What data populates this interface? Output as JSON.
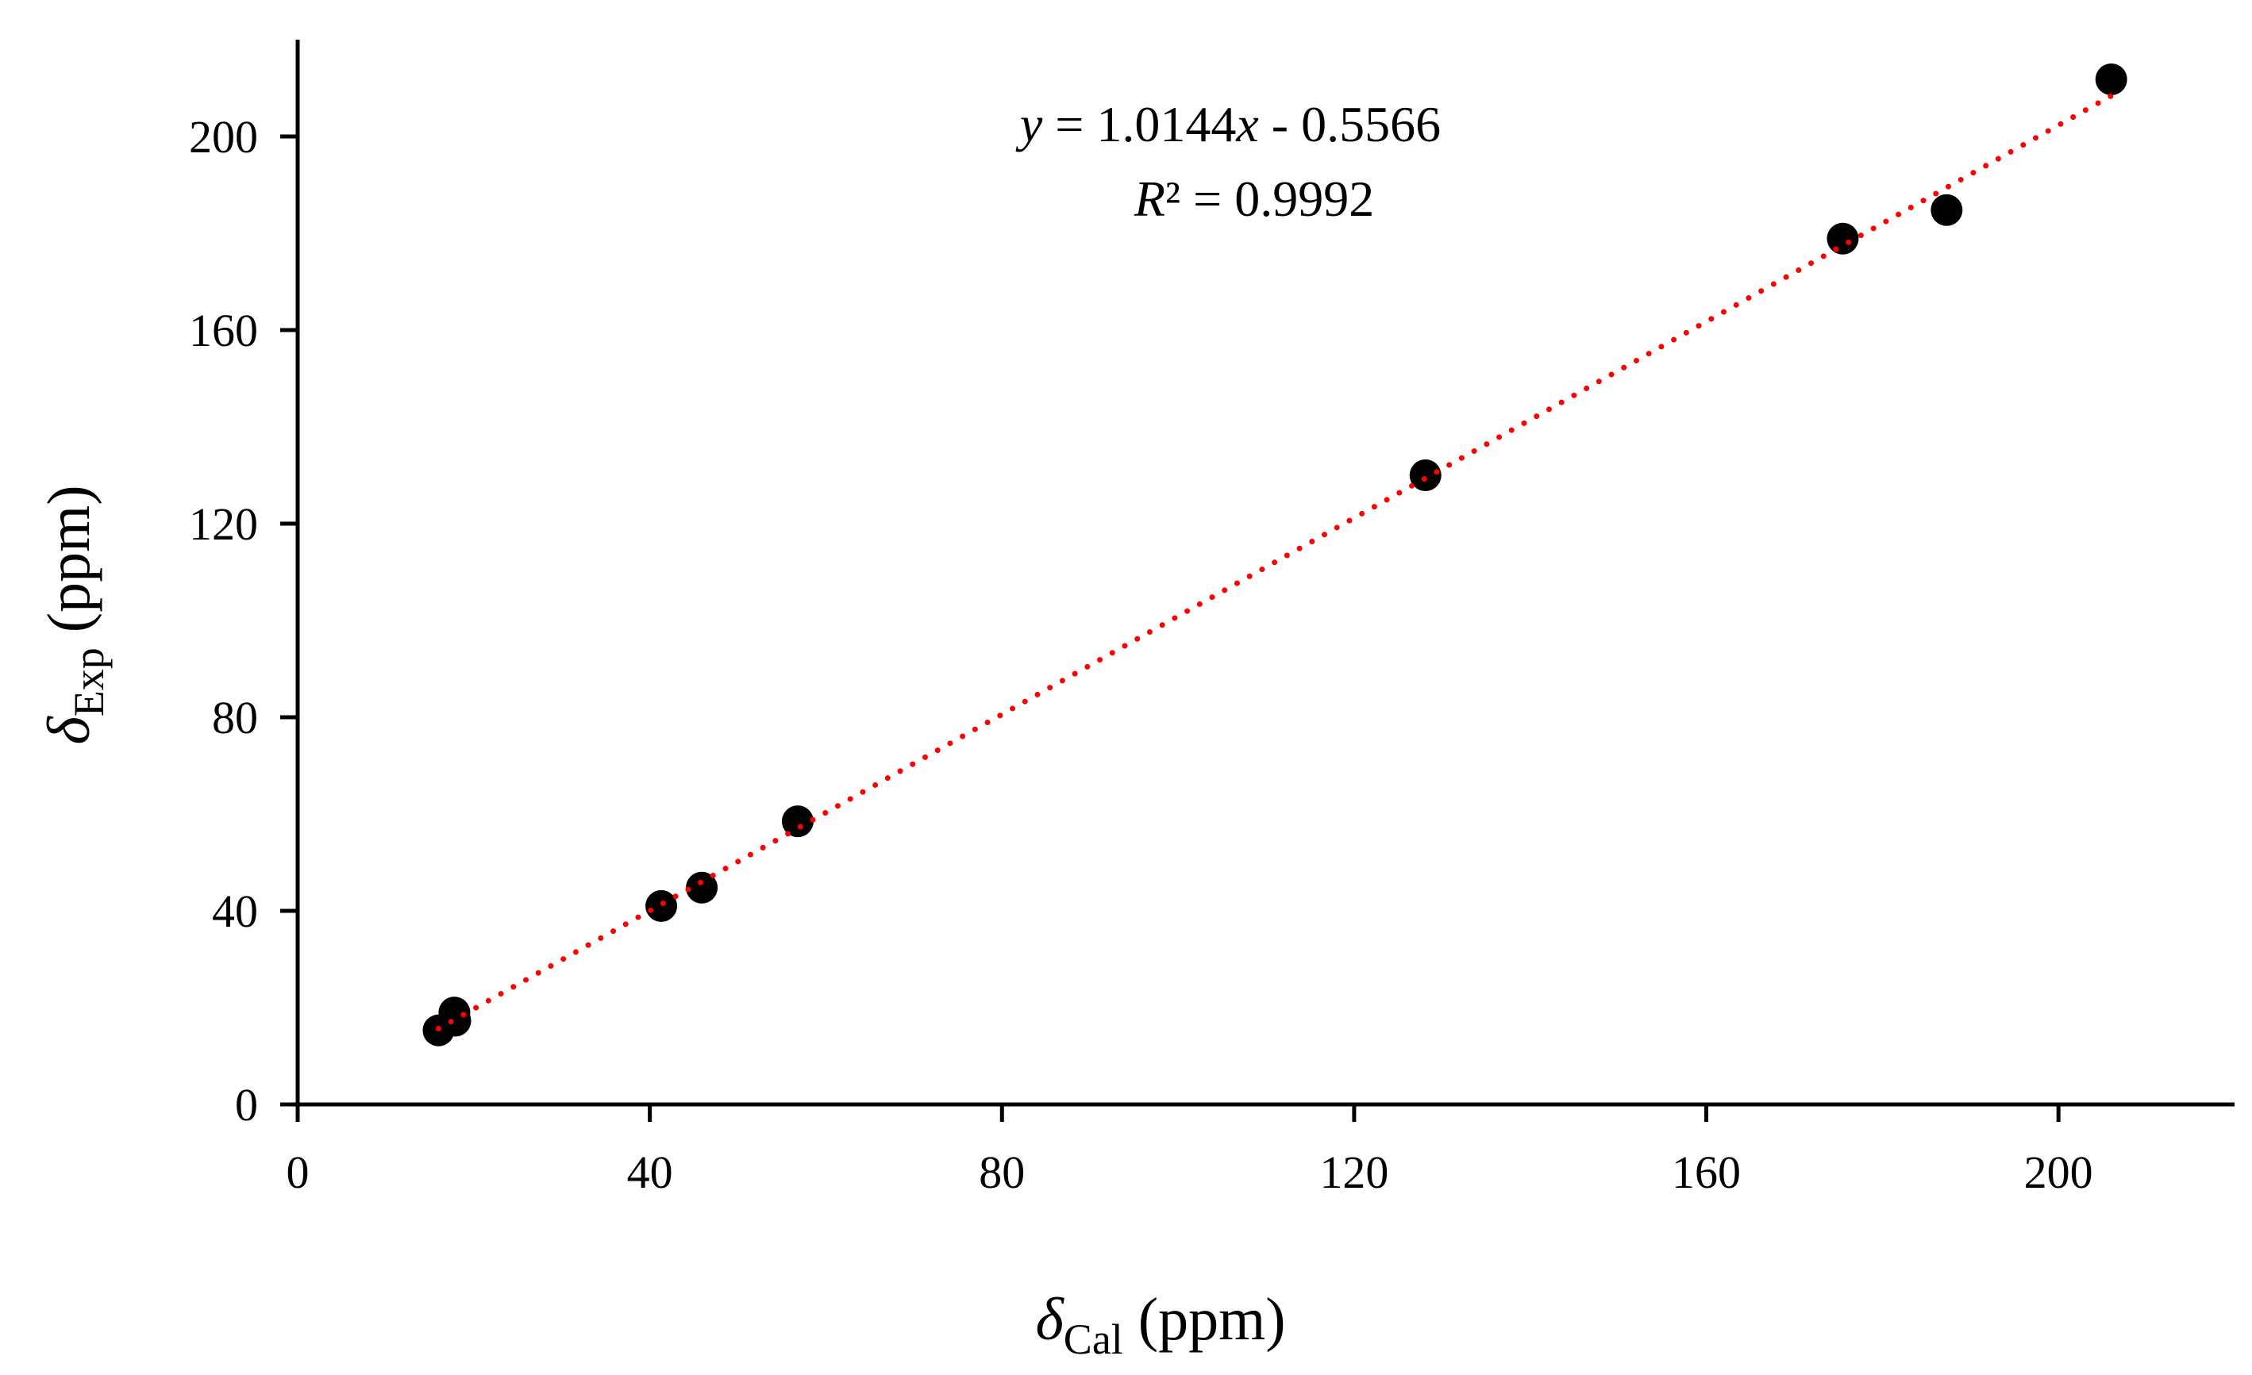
{
  "chart_data": {
    "type": "scatter",
    "x_tick_labels": [
      "0",
      "40",
      "80",
      "120",
      "160",
      "200"
    ],
    "y_tick_labels": [
      "0",
      "40",
      "80",
      "120",
      "160",
      "200"
    ],
    "xlim": [
      0,
      220
    ],
    "ylim": [
      0,
      220
    ],
    "xticks": [
      0,
      40,
      80,
      120,
      160,
      200
    ],
    "yticks": [
      0,
      40,
      80,
      120,
      160,
      200
    ],
    "xlabel": {
      "symbol": "δ",
      "subscript": "Cal",
      "unit": " (ppm)"
    },
    "ylabel": {
      "symbol": "δ",
      "subscript": "Exp",
      "unit": " (ppm)"
    },
    "grid": false,
    "legend": "none",
    "points": [
      {
        "x": 16.0,
        "y": 15.3
      },
      {
        "x": 17.9,
        "y": 17.3
      },
      {
        "x": 17.8,
        "y": 19.0
      },
      {
        "x": 41.3,
        "y": 41.0
      },
      {
        "x": 45.9,
        "y": 44.8
      },
      {
        "x": 56.8,
        "y": 58.5
      },
      {
        "x": 128.1,
        "y": 130.0
      },
      {
        "x": 175.5,
        "y": 178.9
      },
      {
        "x": 187.3,
        "y": 184.8
      },
      {
        "x": 206.0,
        "y": 211.8
      }
    ],
    "trendline": {
      "slope": 1.0144,
      "intercept": -0.5566,
      "x_range": [
        16.0,
        206.0
      ],
      "equation": {
        "y_var": "y",
        "middle": " = 1.0144",
        "x_var": "x",
        "end": " - 0.5566"
      },
      "r_squared": {
        "var": "R",
        "rest": "² = 0.9992"
      }
    },
    "colors": {
      "points": "#000000",
      "trendline": "#ff0000",
      "axes": "#000000"
    }
  }
}
